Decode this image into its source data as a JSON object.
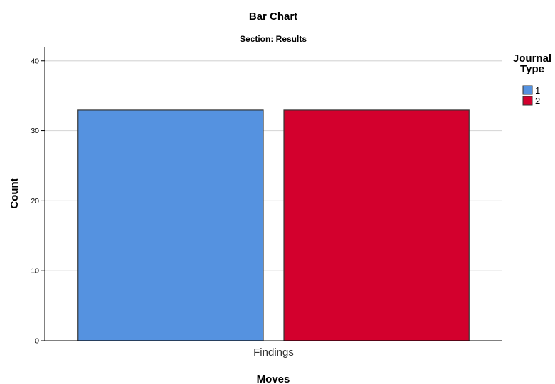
{
  "chart_data": {
    "type": "bar",
    "title": "Bar Chart",
    "subtitle": "Section: Results",
    "xlabel": "Moves",
    "ylabel": "Count",
    "categories": [
      "Findings"
    ],
    "ylim": [
      0,
      42
    ],
    "yticks": [
      0,
      10,
      20,
      30,
      40
    ],
    "grid": true,
    "legend": {
      "title": "Journal Type",
      "placement": "top-right"
    },
    "series": [
      {
        "name": "1",
        "values": [
          33
        ],
        "color": "#5592e0"
      },
      {
        "name": "2",
        "values": [
          33
        ],
        "color": "#d3002d"
      }
    ]
  }
}
